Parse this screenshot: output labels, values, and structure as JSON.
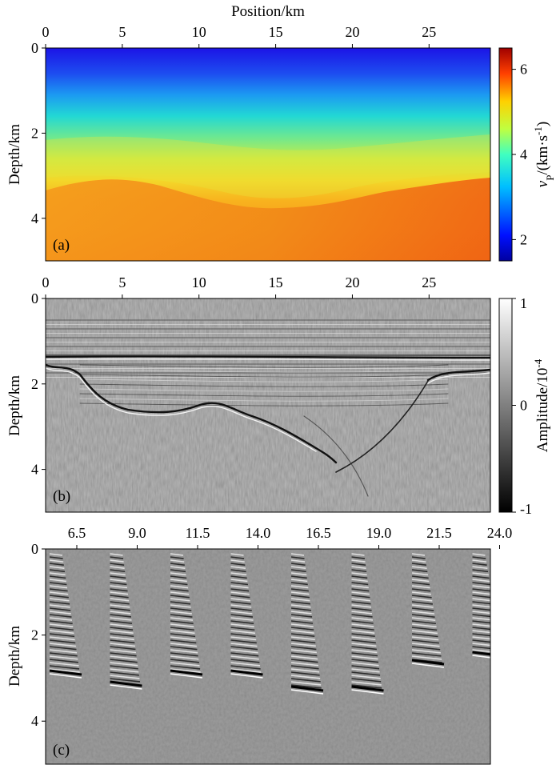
{
  "chart_data": [
    {
      "panel": "(a)",
      "type": "heatmap",
      "title": "",
      "xlabel": "Position/km",
      "ylabel": "Depth/km",
      "x_ticks": [
        "0",
        "5",
        "10",
        "15",
        "20",
        "25"
      ],
      "x_tick_values": [
        0,
        5,
        10,
        15,
        20,
        25
      ],
      "y_ticks": [
        "0",
        "2",
        "4"
      ],
      "y_tick_values": [
        0,
        2,
        4
      ],
      "xlim": [
        0,
        29
      ],
      "ylim": [
        0,
        5
      ],
      "colorbar": {
        "label_main": "v",
        "label_sub": "P",
        "label_units": "/(km·s",
        "label_exp": "-1",
        "label_close": ")",
        "ticks": [
          "2",
          "4",
          "6"
        ],
        "tick_values": [
          2,
          4,
          6
        ],
        "range": [
          1.5,
          6.5
        ],
        "colormap": "jet"
      }
    },
    {
      "panel": "(b)",
      "type": "heatmap",
      "title": "",
      "xlabel": "",
      "ylabel": "Depth/km",
      "x_ticks": [
        "0",
        "5",
        "10",
        "15",
        "20",
        "25"
      ],
      "x_tick_values": [
        0,
        5,
        10,
        15,
        20,
        25
      ],
      "y_ticks": [
        "0",
        "2",
        "4"
      ],
      "y_tick_values": [
        0,
        2,
        4
      ],
      "xlim": [
        0,
        29
      ],
      "ylim": [
        0,
        5
      ],
      "colorbar": {
        "label_main": "Amplitude/10",
        "label_exp": "-4",
        "ticks": [
          "1",
          "0",
          "-1"
        ],
        "tick_values": [
          1,
          0,
          -1
        ],
        "range": [
          -1,
          1
        ],
        "colormap": "gray"
      }
    },
    {
      "panel": "(c)",
      "type": "heatmap",
      "title": "",
      "xlabel": "",
      "ylabel": "Depth/km",
      "x_ticks": [
        "6.5",
        "9.0",
        "11.5",
        "14.0",
        "16.5",
        "19.0",
        "21.5",
        "24.0"
      ],
      "x_tick_values": [
        6.5,
        9.0,
        11.5,
        14.0,
        16.5,
        19.0,
        21.5,
        24.0
      ],
      "y_ticks": [
        "0",
        "2",
        "4"
      ],
      "y_tick_values": [
        0,
        2,
        4
      ],
      "ylim": [
        0,
        5
      ]
    }
  ]
}
